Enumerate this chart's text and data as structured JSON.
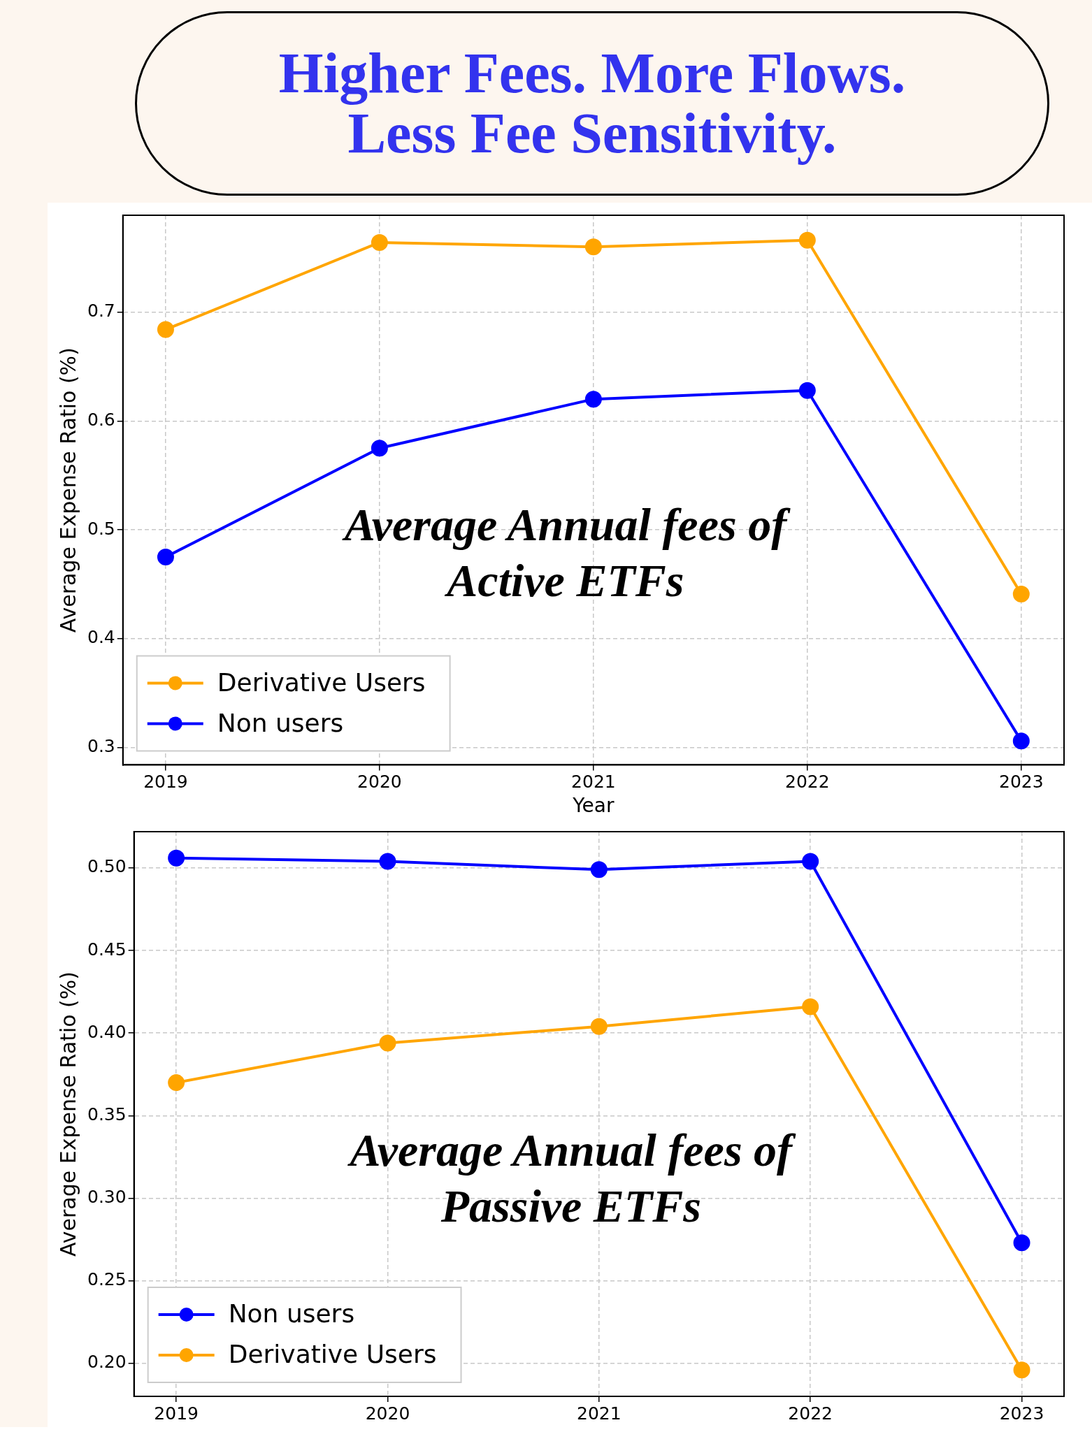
{
  "chart_data": [
    {
      "type": "line",
      "title": "Higher Fees. More Flows. Less Fee Sensitivity.",
      "xlabel": "Year",
      "ylabel": "Average Expense Ratio (%)",
      "annotations": [
        "Average Annual fees of Active ETFs"
      ],
      "x": [
        2019,
        2020,
        2021,
        2022,
        2023
      ],
      "xlim": [
        2018.8,
        2023.2
      ],
      "xticks": [
        2019,
        2020,
        2021,
        2022,
        2023
      ],
      "ylim": [
        0.284,
        0.789
      ],
      "yticks": [
        0.3,
        0.4,
        0.5,
        0.6,
        0.7
      ],
      "grid": true,
      "legend": "bottom left",
      "marker": "circle",
      "line_style": "solid",
      "series": [
        {
          "name": "Derivative Users",
          "color": "#ffa500",
          "values": [
            0.684,
            0.764,
            0.76,
            0.766,
            0.441
          ]
        },
        {
          "name": "Non users",
          "color": "#0000ff",
          "values": [
            0.475,
            0.575,
            0.62,
            0.628,
            0.306
          ]
        }
      ]
    },
    {
      "type": "line",
      "ylabel": "Average Expense Ratio (%)",
      "annotations": [
        "Average Annual fees of Passive ETFs"
      ],
      "x": [
        2019,
        2020,
        2021,
        2022,
        2023
      ],
      "xlim": [
        2018.8,
        2023.2
      ],
      "xticks": [
        2019,
        2020,
        2021,
        2022,
        2023
      ],
      "ylim": [
        0.18,
        0.522
      ],
      "yticks": [
        {
          "value": 0.2,
          "label": "0.20"
        },
        {
          "value": 0.25,
          "label": "0.25"
        },
        {
          "value": 0.3,
          "label": "0.30"
        },
        {
          "value": 0.35,
          "label": "0.35"
        },
        {
          "value": 0.4,
          "label": "0.40"
        },
        {
          "value": 0.45,
          "label": "0.45"
        },
        {
          "value": 0.5,
          "label": "0.50"
        }
      ],
      "grid": true,
      "legend": "bottom left",
      "marker": "circle",
      "line_style": "solid",
      "series": [
        {
          "name": "Non users",
          "color": "#0000ff",
          "values": [
            0.506,
            0.504,
            0.499,
            0.504,
            0.273
          ]
        },
        {
          "name": "Derivative Users",
          "color": "#ffa500",
          "values": [
            0.37,
            0.394,
            0.404,
            0.416,
            0.196
          ]
        }
      ]
    }
  ]
}
